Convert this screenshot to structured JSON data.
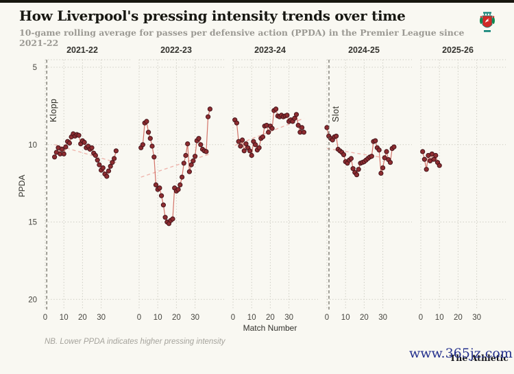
{
  "page": {
    "top_bar_color": "#17160f",
    "background_color": "#f9f8f2"
  },
  "header": {
    "title": "How Liverpool's pressing intensity trends over time",
    "subtitle": "10-game rolling average for passes per defensive action (PPDA) in the Premier League since 2021-22",
    "crest": "liverpool-crest"
  },
  "chart_data": {
    "type": "scatter",
    "xlabel": "Match Number",
    "ylabel": "PPDA",
    "x_ticks": [
      0,
      10,
      20,
      30
    ],
    "y_ticks": [
      5,
      10,
      15,
      20
    ],
    "y_axis_reversed": true,
    "ylim": [
      4.5,
      20.6
    ],
    "grid": "dotted",
    "legend_position": "none",
    "managers": [
      {
        "name": "Klopp",
        "facet_index": 0,
        "match": 0.8
      },
      {
        "name": "Slot",
        "facet_index": 3,
        "match": 1.1
      }
    ],
    "facets": [
      {
        "season": "2021-22",
        "x_start": 5,
        "values": [
          10.8,
          10.5,
          10.2,
          10.6,
          10.3,
          10.6,
          10.15,
          9.8,
          9.9,
          9.5,
          9.3,
          9.45,
          9.35,
          9.4,
          9.95,
          9.75,
          9.85,
          10.2,
          10.1,
          10.3,
          10.2,
          10.55,
          10.7,
          11.0,
          11.3,
          11.65,
          11.5,
          11.9,
          12.05,
          11.7,
          11.4,
          11.15,
          10.9,
          10.4
        ],
        "trend": {
          "x": [
            5,
            38
          ],
          "ppda": [
            10.0,
            11.15
          ]
        }
      },
      {
        "season": "2022-23",
        "x_start": 1,
        "values": [
          10.2,
          10.0,
          8.6,
          8.5,
          9.2,
          9.6,
          10.1,
          10.8,
          12.6,
          12.9,
          12.8,
          13.3,
          13.9,
          14.7,
          15.0,
          15.1,
          14.9,
          14.8,
          12.8,
          13.0,
          12.9,
          12.6,
          12.1,
          11.2,
          10.7,
          9.95,
          11.75,
          11.3,
          11.05,
          10.75,
          9.75,
          9.6,
          10.0,
          10.3,
          10.4,
          10.45,
          8.2,
          7.7
        ],
        "trend": {
          "x": [
            1,
            38
          ],
          "ppda": [
            12.1,
            10.6
          ]
        }
      },
      {
        "season": "2023-24",
        "x_start": 1,
        "values": [
          8.4,
          8.6,
          9.8,
          10.1,
          9.7,
          10.4,
          9.95,
          10.2,
          10.4,
          10.7,
          9.8,
          10.0,
          10.35,
          10.2,
          9.6,
          9.5,
          8.8,
          8.75,
          9.2,
          8.8,
          8.95,
          7.8,
          7.7,
          8.15,
          8.2,
          8.1,
          8.2,
          8.15,
          8.1,
          8.5,
          8.4,
          8.5,
          8.3,
          8.05,
          8.75,
          9.2,
          8.9,
          9.2
        ],
        "trend": {
          "x": [
            1,
            38
          ],
          "ppda": [
            10.05,
            8.3
          ]
        }
      },
      {
        "season": "2024-25",
        "x_start": 0,
        "values": [
          8.9,
          9.45,
          9.6,
          9.7,
          9.5,
          9.45,
          10.3,
          10.4,
          10.5,
          10.65,
          11.1,
          11.2,
          11.0,
          10.9,
          11.55,
          11.8,
          11.95,
          11.6,
          11.2,
          11.15,
          11.1,
          11.0,
          10.9,
          10.8,
          10.75,
          9.8,
          9.75,
          10.2,
          10.35,
          11.85,
          11.5,
          10.85,
          10.45,
          10.97,
          11.15,
          10.25,
          10.15
        ],
        "trend": {
          "x": [
            0,
            36
          ],
          "ppda": [
            10.25,
            10.95
          ]
        }
      },
      {
        "season": "2025-26",
        "x_start": 1,
        "values": [
          10.45,
          10.95,
          11.6,
          10.7,
          11.05,
          10.6,
          10.95,
          10.7,
          11.15,
          11.35
        ],
        "trend": null
      }
    ],
    "colors": {
      "point_fill": "#8e2d31",
      "point_stroke": "#44141a",
      "line": "#cd5a4f",
      "trend": "#efb3ab",
      "grid": "#c9c8be",
      "manager_line": "#5a594f",
      "tick_text": "#46453f",
      "season_text": "#34332f"
    }
  },
  "footnote": "NB. Lower PPDA indicates higher pressing intensity",
  "credit": "The Athletic",
  "watermark": "www.365jz.com"
}
